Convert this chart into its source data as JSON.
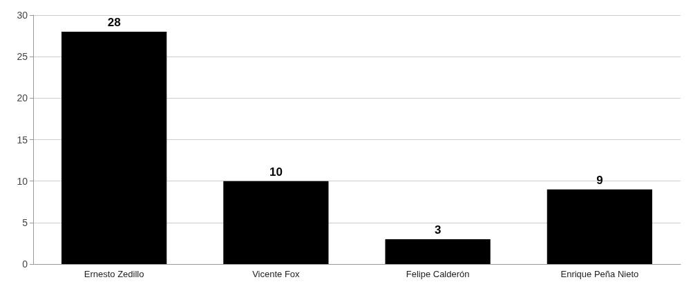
{
  "chart_data": {
    "type": "bar",
    "categories": [
      "Ernesto Zedillo",
      "Vicente Fox",
      "Felipe Calderón",
      "Enrique Peña Nieto"
    ],
    "values": [
      28,
      10,
      3,
      9
    ],
    "color": "#000000",
    "data_labels": true,
    "ylim": [
      0,
      30
    ],
    "yticks": [
      0,
      5,
      10,
      15,
      20,
      25,
      30
    ],
    "grid": "y"
  }
}
